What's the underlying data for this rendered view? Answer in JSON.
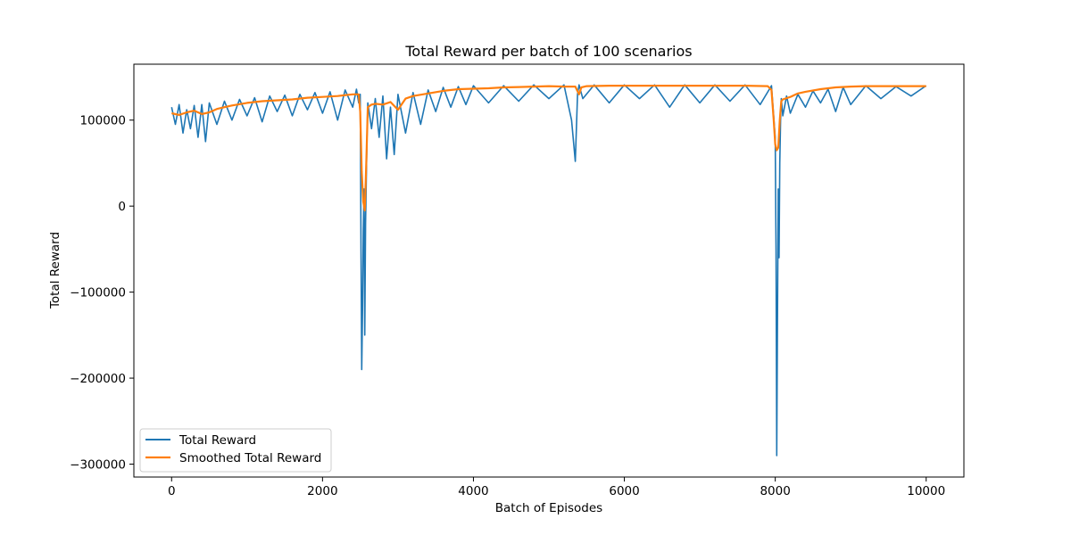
{
  "chart_data": {
    "type": "line",
    "title": "Total Reward per batch of 100 scenarios",
    "xlabel": "Batch of Episodes",
    "ylabel": "Total Reward",
    "xlim": [
      -500,
      10500
    ],
    "ylim": [
      -315000,
      165000
    ],
    "xticks": [
      0,
      2000,
      4000,
      6000,
      8000,
      10000
    ],
    "xtick_labels": [
      "0",
      "2000",
      "4000",
      "6000",
      "8000",
      "10000"
    ],
    "yticks": [
      100000,
      0,
      -100000,
      -200000,
      -300000
    ],
    "ytick_labels": [
      "100000",
      "0",
      "−100000",
      "−200000",
      "−300000"
    ],
    "grid": false,
    "legend": "lower-left",
    "series": [
      {
        "name": "Total Reward",
        "color": "#1f77b4",
        "x": [
          0,
          50,
          100,
          150,
          200,
          250,
          300,
          350,
          400,
          450,
          500,
          600,
          700,
          800,
          900,
          1000,
          1100,
          1200,
          1300,
          1400,
          1500,
          1600,
          1700,
          1800,
          1900,
          2000,
          2100,
          2200,
          2300,
          2400,
          2450,
          2480,
          2500,
          2510,
          2520,
          2530,
          2540,
          2550,
          2560,
          2570,
          2580,
          2590,
          2600,
          2650,
          2700,
          2750,
          2800,
          2850,
          2900,
          2950,
          3000,
          3100,
          3200,
          3300,
          3400,
          3500,
          3600,
          3700,
          3800,
          3900,
          4000,
          4200,
          4400,
          4600,
          4800,
          5000,
          5200,
          5300,
          5350,
          5380,
          5400,
          5450,
          5600,
          5800,
          6000,
          6200,
          6400,
          6600,
          6800,
          7000,
          7200,
          7400,
          7600,
          7800,
          7950,
          8000,
          8010,
          8020,
          8030,
          8040,
          8050,
          8060,
          8070,
          8080,
          8100,
          8150,
          8200,
          8300,
          8400,
          8500,
          8600,
          8700,
          8800,
          8900,
          9000,
          9200,
          9400,
          9600,
          9800,
          10000
        ],
        "y": [
          115000,
          95000,
          118000,
          85000,
          112000,
          90000,
          117000,
          80000,
          118000,
          75000,
          120000,
          95000,
          122000,
          100000,
          124000,
          105000,
          126000,
          98000,
          128000,
          110000,
          129000,
          105000,
          130000,
          112000,
          132000,
          108000,
          133000,
          100000,
          135000,
          115000,
          136000,
          120000,
          130000,
          -50000,
          -190000,
          -120000,
          -30000,
          20000,
          -150000,
          -20000,
          30000,
          80000,
          120000,
          90000,
          125000,
          80000,
          128000,
          55000,
          115000,
          60000,
          130000,
          85000,
          132000,
          95000,
          135000,
          110000,
          138000,
          115000,
          139000,
          118000,
          140000,
          120000,
          140000,
          122000,
          141000,
          125000,
          141000,
          100000,
          52000,
          130000,
          141000,
          125000,
          141000,
          120000,
          141000,
          125000,
          141000,
          115000,
          141000,
          120000,
          141000,
          122000,
          141000,
          118000,
          140000,
          80000,
          -50000,
          -290000,
          -120000,
          20000,
          -60000,
          50000,
          100000,
          125000,
          105000,
          128000,
          108000,
          130000,
          115000,
          134000,
          120000,
          136000,
          110000,
          138000,
          118000,
          140000,
          125000,
          139000,
          128000,
          140000
        ]
      },
      {
        "name": "Smoothed Total Reward",
        "color": "#ff7f0e",
        "x": [
          0,
          100,
          200,
          300,
          400,
          500,
          600,
          800,
          1000,
          1200,
          1400,
          1600,
          1800,
          2000,
          2200,
          2400,
          2480,
          2500,
          2520,
          2540,
          2560,
          2580,
          2600,
          2650,
          2700,
          2800,
          2900,
          3000,
          3100,
          3200,
          3400,
          3600,
          3800,
          4000,
          4200,
          4400,
          4600,
          4800,
          5000,
          5200,
          5350,
          5400,
          5430,
          5500,
          5800,
          6000,
          6400,
          6800,
          7200,
          7600,
          7900,
          7950,
          7980,
          8000,
          8020,
          8040,
          8060,
          8080,
          8100,
          8200,
          8300,
          8400,
          8600,
          8800,
          9000,
          9200,
          9400,
          9600,
          9800,
          10000
        ],
        "y": [
          108000,
          106000,
          109000,
          111000,
          107000,
          109000,
          113000,
          117000,
          120000,
          122000,
          123000,
          124000,
          126000,
          127000,
          128000,
          130000,
          130000,
          110000,
          40000,
          5000,
          -5000,
          50000,
          115000,
          118000,
          119000,
          118000,
          121000,
          112000,
          125000,
          128000,
          131000,
          134000,
          136000,
          136500,
          137000,
          138000,
          138500,
          139000,
          139500,
          139000,
          139000,
          130000,
          138000,
          139500,
          140000,
          140000,
          140000,
          140000,
          140000,
          140000,
          139500,
          135000,
          100000,
          72000,
          65000,
          68000,
          100000,
          122000,
          124000,
          127000,
          131000,
          133000,
          136000,
          138000,
          139000,
          139500,
          139500,
          139500,
          139500,
          139500
        ]
      }
    ]
  }
}
